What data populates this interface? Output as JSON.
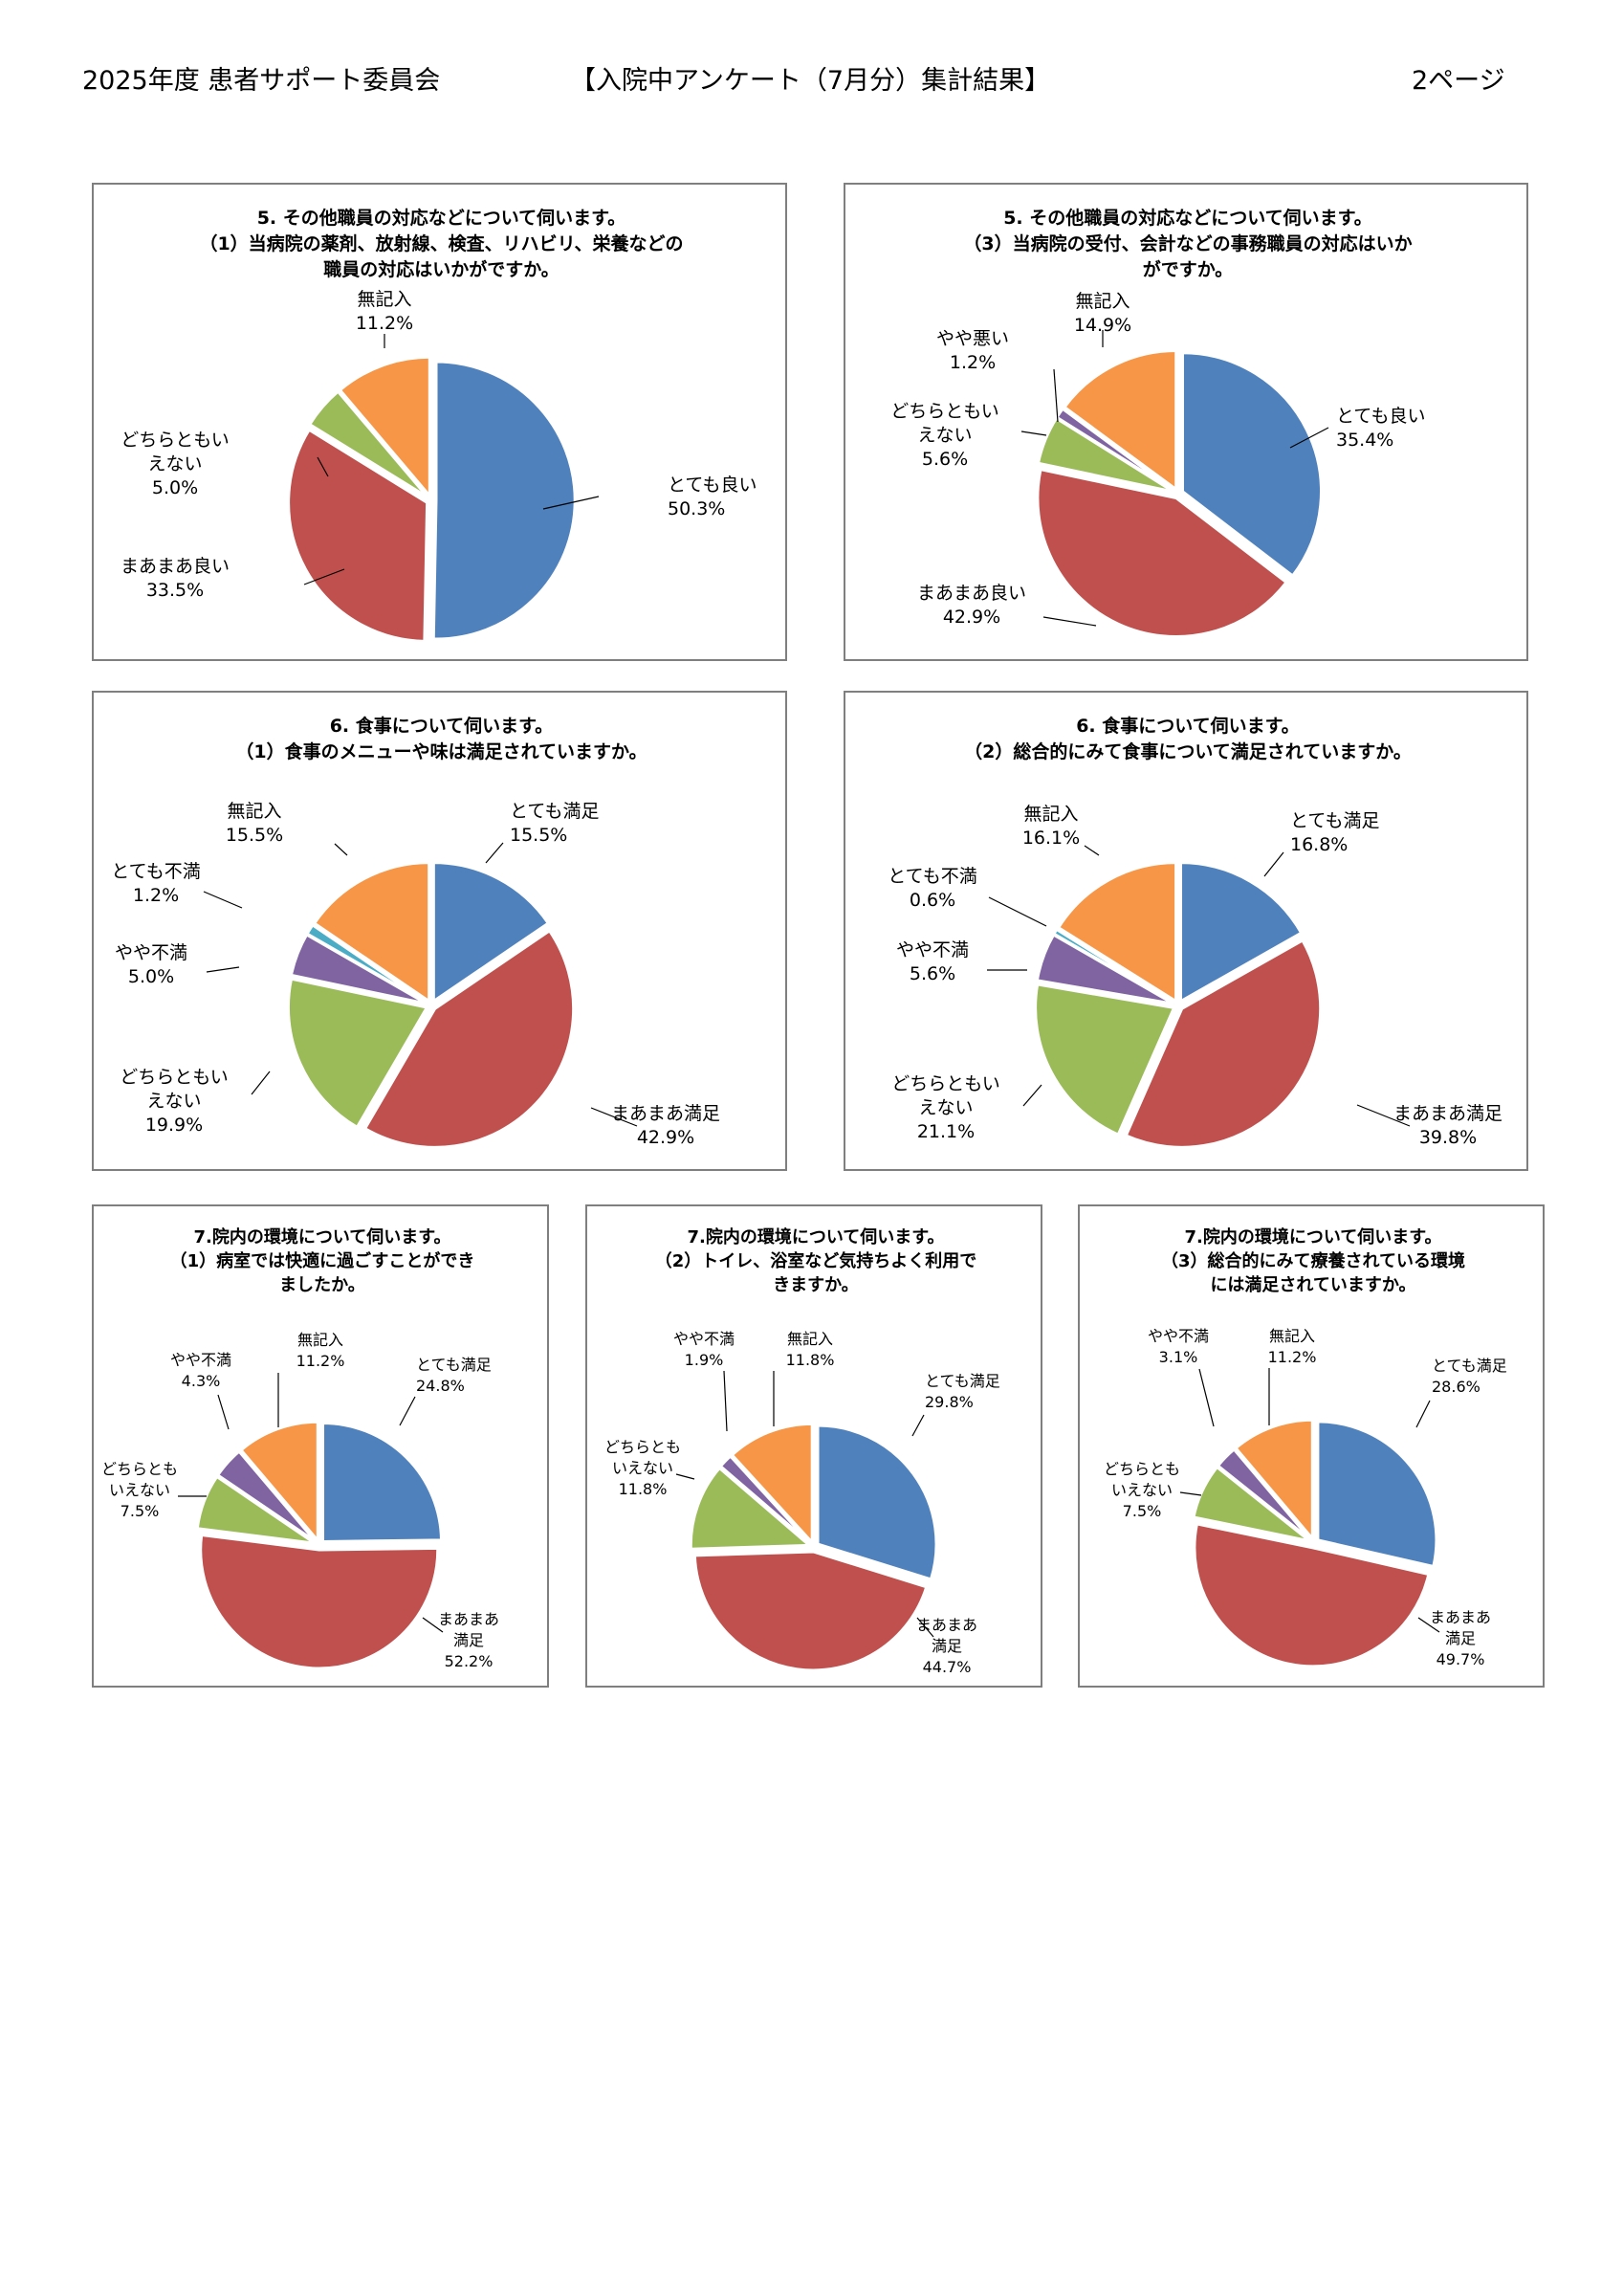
{
  "header": {
    "left": "2025年度 患者サポート委員会",
    "center": "【入院中アンケート（7月分）集計結果】",
    "right": "2ページ"
  },
  "chart_data": [
    {
      "type": "pie",
      "title_lines": [
        "5. その他職員の対応などについて伺います。",
        "（1）当病院の薬剤、放射線、検査、リハビリ、栄養などの",
        "職員の対応はいかがですか。"
      ],
      "slices": [
        {
          "label": "とても良い",
          "value": 50.3,
          "pct": "50.3%",
          "color": "#4f81bd"
        },
        {
          "label": "まあまあ良い",
          "value": 33.5,
          "pct": "33.5%",
          "color": "#c0504d"
        },
        {
          "label": "どちらともいえない",
          "value": 5.0,
          "pct": "5.0%",
          "color": "#9bbb59"
        },
        {
          "label": "無記入",
          "value": 11.2,
          "pct": "11.2%",
          "color": "#f79646"
        }
      ]
    },
    {
      "type": "pie",
      "title_lines": [
        "5. その他職員の対応などについて伺います。",
        "（3）当病院の受付、会計などの事務職員の対応はいか",
        "がですか。"
      ],
      "slices": [
        {
          "label": "とても良い",
          "value": 35.4,
          "pct": "35.4%",
          "color": "#4f81bd"
        },
        {
          "label": "まあまあ良い",
          "value": 42.9,
          "pct": "42.9%",
          "color": "#c0504d"
        },
        {
          "label": "どちらともいえない",
          "value": 5.6,
          "pct": "5.6%",
          "color": "#9bbb59"
        },
        {
          "label": "やや悪い",
          "value": 1.2,
          "pct": "1.2%",
          "color": "#8064a2"
        },
        {
          "label": "無記入",
          "value": 14.9,
          "pct": "14.9%",
          "color": "#f79646"
        }
      ]
    },
    {
      "type": "pie",
      "title_lines": [
        "6. 食事について伺います。",
        "（1）食事のメニューや味は満足されていますか。"
      ],
      "slices": [
        {
          "label": "とても満足",
          "value": 15.5,
          "pct": "15.5%",
          "color": "#4f81bd"
        },
        {
          "label": "まあまあ満足",
          "value": 42.9,
          "pct": "42.9%",
          "color": "#c0504d"
        },
        {
          "label": "どちらともいえない",
          "value": 19.9,
          "pct": "19.9%",
          "color": "#9bbb59"
        },
        {
          "label": "やや不満",
          "value": 5.0,
          "pct": "5.0%",
          "color": "#8064a2"
        },
        {
          "label": "とても不満",
          "value": 1.2,
          "pct": "1.2%",
          "color": "#4bacc6"
        },
        {
          "label": "無記入",
          "value": 15.5,
          "pct": "15.5%",
          "color": "#f79646"
        }
      ]
    },
    {
      "type": "pie",
      "title_lines": [
        "6. 食事について伺います。",
        "（2）総合的にみて食事について満足されていますか。"
      ],
      "slices": [
        {
          "label": "とても満足",
          "value": 16.8,
          "pct": "16.8%",
          "color": "#4f81bd"
        },
        {
          "label": "まあまあ満足",
          "value": 39.8,
          "pct": "39.8%",
          "color": "#c0504d"
        },
        {
          "label": "どちらともいえない",
          "value": 21.1,
          "pct": "21.1%",
          "color": "#9bbb59"
        },
        {
          "label": "やや不満",
          "value": 5.6,
          "pct": "5.6%",
          "color": "#8064a2"
        },
        {
          "label": "とても不満",
          "value": 0.6,
          "pct": "0.6%",
          "color": "#4bacc6"
        },
        {
          "label": "無記入",
          "value": 16.1,
          "pct": "16.1%",
          "color": "#f79646"
        }
      ]
    },
    {
      "type": "pie",
      "title_lines": [
        "7.院内の環境について伺います。",
        "（1）病室では快適に過ごすことができ",
        "ましたか。"
      ],
      "slices": [
        {
          "label": "とても満足",
          "value": 24.8,
          "pct": "24.8%",
          "color": "#4f81bd"
        },
        {
          "label": "まあまあ満足",
          "value": 52.2,
          "pct": "52.2%",
          "color": "#c0504d"
        },
        {
          "label": "どちらともいえない",
          "value": 7.5,
          "pct": "7.5%",
          "color": "#9bbb59"
        },
        {
          "label": "やや不満",
          "value": 4.3,
          "pct": "4.3%",
          "color": "#8064a2"
        },
        {
          "label": "無記入",
          "value": 11.2,
          "pct": "11.2%",
          "color": "#f79646"
        }
      ]
    },
    {
      "type": "pie",
      "title_lines": [
        "7.院内の環境について伺います。",
        "（2）トイレ、浴室など気持ちよく利用で",
        "きますか。"
      ],
      "slices": [
        {
          "label": "とても満足",
          "value": 29.8,
          "pct": "29.8%",
          "color": "#4f81bd"
        },
        {
          "label": "まあまあ満足",
          "value": 44.7,
          "pct": "44.7%",
          "color": "#c0504d"
        },
        {
          "label": "どちらともいえない",
          "value": 11.8,
          "pct": "11.8%",
          "color": "#9bbb59"
        },
        {
          "label": "やや不満",
          "value": 1.9,
          "pct": "1.9%",
          "color": "#8064a2"
        },
        {
          "label": "無記入",
          "value": 11.8,
          "pct": "11.8%",
          "color": "#f79646"
        }
      ]
    },
    {
      "type": "pie",
      "title_lines": [
        "7.院内の環境について伺います。",
        "（3）総合的にみて療養されている環境",
        "には満足されていますか。"
      ],
      "slices": [
        {
          "label": "とても満足",
          "value": 28.6,
          "pct": "28.6%",
          "color": "#4f81bd"
        },
        {
          "label": "まあまあ満足",
          "value": 49.7,
          "pct": "49.7%",
          "color": "#c0504d"
        },
        {
          "label": "どちらともいえない",
          "value": 7.5,
          "pct": "7.5%",
          "color": "#9bbb59"
        },
        {
          "label": "やや不満",
          "value": 3.1,
          "pct": "3.1%",
          "color": "#8064a2"
        },
        {
          "label": "無記入",
          "value": 11.2,
          "pct": "11.2%",
          "color": "#f79646"
        }
      ]
    }
  ]
}
